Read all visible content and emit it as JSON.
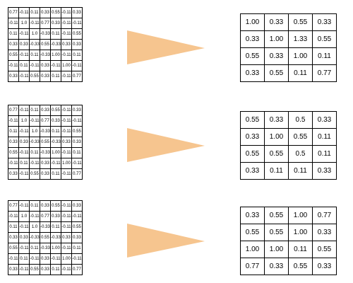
{
  "colors": {
    "arrow": "#F6C58F",
    "grid_line": "#000000",
    "background": "#FFFFFF"
  },
  "rows": [
    {
      "input": [
        [
          "0.77",
          "-0.11",
          "0.11",
          "0.33",
          "0.55",
          "-0.11",
          "0.33"
        ],
        [
          "-0.11",
          "1.0",
          "-0.11",
          "0.77",
          "0.33",
          "-0.11",
          "-0.11"
        ],
        [
          "0.11",
          "-0.11",
          "1.0",
          "-0.33",
          "0.11",
          "-0.11",
          "0.55"
        ],
        [
          "0.33",
          "0.33",
          "-0.33",
          "0.55",
          "-0.33",
          "0.33",
          "0.33"
        ],
        [
          "0.55",
          "-0.11",
          "0.11",
          "-0.33",
          "1.00",
          "-0.11",
          "0.11"
        ],
        [
          "-0.11",
          "0.11",
          "-0.11",
          "0.33",
          "-0.11",
          "1.00",
          "-0.11"
        ],
        [
          "0.33",
          "-0.11",
          "0.55",
          "0.33",
          "0.11",
          "-0.11",
          "0.77"
        ]
      ],
      "output": [
        [
          "1.00",
          "0.33",
          "0.55",
          "0.33"
        ],
        [
          "0.33",
          "1.00",
          "1.33",
          "0.55"
        ],
        [
          "0.55",
          "0.33",
          "1.00",
          "0.11"
        ],
        [
          "0.33",
          "0.55",
          "0.11",
          "0.77"
        ]
      ]
    },
    {
      "input": [
        [
          "0.77",
          "-0.11",
          "0.11",
          "0.33",
          "0.55",
          "-0.11",
          "0.33"
        ],
        [
          "-0.11",
          "1.0",
          "-0.11",
          "0.77",
          "0.33",
          "-0.11",
          "-0.11"
        ],
        [
          "0.11",
          "-0.11",
          "1.0",
          "-0.33",
          "0.11",
          "-0.11",
          "0.55"
        ],
        [
          "0.33",
          "0.33",
          "-0.33",
          "0.55",
          "-0.33",
          "0.33",
          "0.33"
        ],
        [
          "0.55",
          "-0.11",
          "0.11",
          "-0.33",
          "1.00",
          "-0.11",
          "0.11"
        ],
        [
          "-0.11",
          "0.11",
          "-0.11",
          "0.33",
          "-0.11",
          "1.00",
          "-0.11"
        ],
        [
          "0.33",
          "-0.11",
          "0.55",
          "0.33",
          "0.11",
          "-0.11",
          "0.77"
        ]
      ],
      "output": [
        [
          "0.55",
          "0.33",
          "0.5",
          "0.33"
        ],
        [
          "0.33",
          "1.00",
          "0.55",
          "0.11"
        ],
        [
          "0.55",
          "0.55",
          "0.5",
          "0.11"
        ],
        [
          "0.33",
          "0.11",
          "0.11",
          "0.33"
        ]
      ]
    },
    {
      "input": [
        [
          "0.77",
          "-0.11",
          "0.11",
          "0.33",
          "0.55",
          "-0.11",
          "0.33"
        ],
        [
          "-0.11",
          "1.0",
          "-0.11",
          "0.77",
          "0.33",
          "-0.11",
          "-0.11"
        ],
        [
          "0.11",
          "-0.11",
          "1.0",
          "-0.33",
          "0.11",
          "-0.11",
          "0.55"
        ],
        [
          "0.33",
          "0.33",
          "-0.33",
          "0.55",
          "-0.33",
          "0.33",
          "0.33"
        ],
        [
          "0.55",
          "-0.11",
          "0.11",
          "-0.33",
          "1.00",
          "-0.11",
          "0.11"
        ],
        [
          "-0.11",
          "0.11",
          "-0.11",
          "0.33",
          "-0.11",
          "1.00",
          "-0.11"
        ],
        [
          "0.33",
          "-0.11",
          "0.55",
          "0.33",
          "0.11",
          "-0.11",
          "0.77"
        ]
      ],
      "output": [
        [
          "0.33",
          "0.55",
          "1.00",
          "0.77"
        ],
        [
          "0.55",
          "0.55",
          "1.00",
          "0.33"
        ],
        [
          "1.00",
          "1.00",
          "0.11",
          "0.55"
        ],
        [
          "0.77",
          "0.33",
          "0.55",
          "0.33"
        ]
      ]
    }
  ]
}
